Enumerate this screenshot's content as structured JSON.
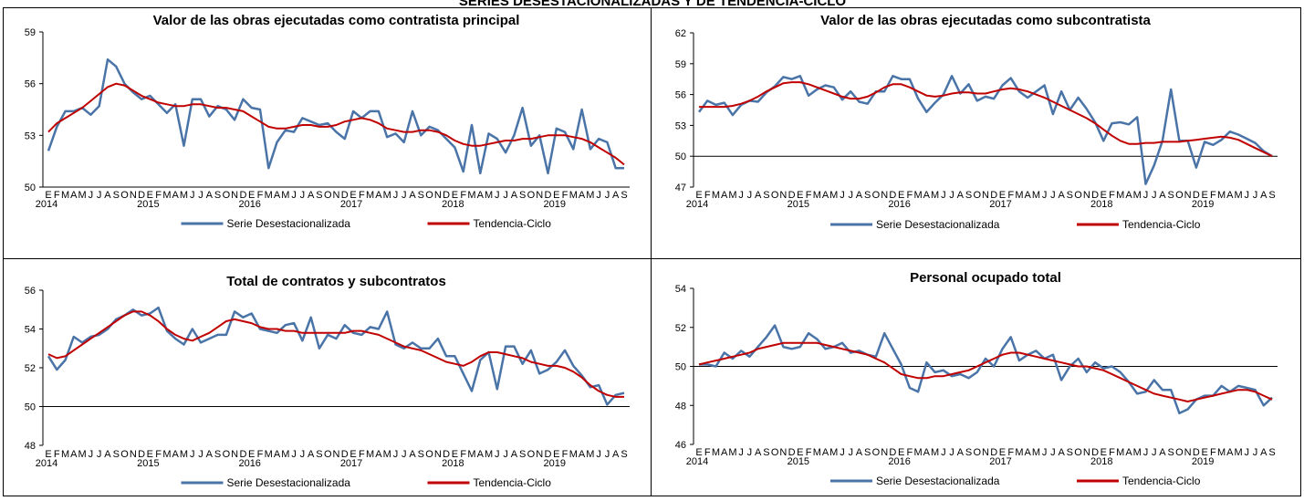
{
  "page_title": "SERIES DESESTACIONALIZADAS Y DE TENDENCIA-CICLO",
  "chart_data": [
    {
      "type": "line",
      "title": "Valor de las obras ejecutadas como contratista principal",
      "ylim": [
        50,
        59
      ],
      "yticks": [
        50,
        53,
        56,
        59
      ],
      "x_axis_at": 50,
      "categories": [
        "E",
        "F",
        "M",
        "A",
        "M",
        "J",
        "J",
        "A",
        "S",
        "O",
        "N",
        "D",
        "E",
        "F",
        "M",
        "A",
        "M",
        "J",
        "J",
        "A",
        "S",
        "O",
        "N",
        "D",
        "E",
        "F",
        "M",
        "A",
        "M",
        "J",
        "J",
        "A",
        "S",
        "O",
        "N",
        "D",
        "E",
        "F",
        "M",
        "A",
        "M",
        "J",
        "J",
        "A",
        "S",
        "O",
        "N",
        "D",
        "E",
        "F",
        "M",
        "A",
        "M",
        "J",
        "J",
        "A",
        "S",
        "O",
        "N",
        "D",
        "E",
        "F",
        "M",
        "A",
        "M",
        "J",
        "J",
        "A",
        "S"
      ],
      "years": [
        "2014",
        null,
        null,
        null,
        null,
        null,
        null,
        null,
        null,
        null,
        null,
        null,
        "2015",
        null,
        null,
        null,
        null,
        null,
        null,
        null,
        null,
        null,
        null,
        null,
        "2016",
        null,
        null,
        null,
        null,
        null,
        null,
        null,
        null,
        null,
        null,
        null,
        "2017",
        null,
        null,
        null,
        null,
        null,
        null,
        null,
        null,
        null,
        null,
        null,
        "2018",
        null,
        null,
        null,
        null,
        null,
        null,
        null,
        null,
        null,
        null,
        null,
        "2019",
        null,
        null,
        null,
        null,
        null,
        null,
        null,
        null
      ],
      "series": [
        {
          "name": "Serie Desestacionalizada",
          "color": "#4a74a8",
          "values": [
            52.1,
            53.5,
            54.4,
            54.4,
            54.6,
            54.2,
            54.7,
            57.4,
            57.0,
            56.0,
            55.5,
            55.1,
            55.3,
            54.8,
            54.3,
            54.8,
            52.4,
            55.1,
            55.1,
            54.1,
            54.7,
            54.5,
            53.9,
            55.1,
            54.6,
            54.5,
            51.1,
            52.6,
            53.3,
            53.2,
            54.0,
            53.8,
            53.6,
            53.7,
            53.2,
            52.8,
            54.4,
            54.0,
            54.4,
            54.4,
            52.9,
            53.1,
            52.6,
            54.4,
            53.0,
            53.5,
            53.3,
            52.8,
            52.3,
            50.9,
            53.6,
            50.8,
            53.1,
            52.8,
            52.0,
            53.0,
            54.6,
            52.4,
            53.0,
            50.8,
            53.4,
            53.2,
            52.2,
            54.5,
            52.2,
            52.8,
            52.6,
            51.1,
            51.1
          ]
        },
        {
          "name": "Tendencia-Ciclo",
          "color": "#c00000",
          "values": [
            53.2,
            53.7,
            54.0,
            54.3,
            54.6,
            55.0,
            55.4,
            55.8,
            56.0,
            55.9,
            55.6,
            55.3,
            55.1,
            54.9,
            54.8,
            54.7,
            54.7,
            54.8,
            54.8,
            54.7,
            54.6,
            54.6,
            54.5,
            54.4,
            54.1,
            53.8,
            53.5,
            53.4,
            53.4,
            53.5,
            53.6,
            53.6,
            53.5,
            53.5,
            53.6,
            53.8,
            53.9,
            54.0,
            53.9,
            53.7,
            53.4,
            53.3,
            53.2,
            53.2,
            53.3,
            53.3,
            53.2,
            53.0,
            52.7,
            52.5,
            52.4,
            52.4,
            52.5,
            52.6,
            52.7,
            52.7,
            52.8,
            52.8,
            52.9,
            53.0,
            53.0,
            53.0,
            52.9,
            52.8,
            52.6,
            52.3,
            52.0,
            51.7,
            51.3
          ]
        }
      ]
    },
    {
      "type": "line",
      "title": "Valor de las obras ejecutadas como subcontratista",
      "ylim": [
        47,
        62
      ],
      "yticks": [
        47,
        50,
        53,
        56,
        59,
        62
      ],
      "x_axis_at": 50,
      "categories": [
        "E",
        "F",
        "M",
        "A",
        "M",
        "J",
        "J",
        "A",
        "S",
        "O",
        "N",
        "D",
        "E",
        "F",
        "M",
        "A",
        "M",
        "J",
        "J",
        "A",
        "S",
        "O",
        "N",
        "D",
        "E",
        "F",
        "M",
        "A",
        "M",
        "J",
        "J",
        "A",
        "S",
        "O",
        "N",
        "D",
        "E",
        "F",
        "M",
        "A",
        "M",
        "J",
        "J",
        "A",
        "S",
        "O",
        "N",
        "D",
        "E",
        "F",
        "M",
        "A",
        "M",
        "J",
        "J",
        "A",
        "S",
        "O",
        "N",
        "D",
        "E",
        "F",
        "M",
        "A",
        "M",
        "J",
        "J",
        "A",
        "S"
      ],
      "years": [
        "2014",
        null,
        null,
        null,
        null,
        null,
        null,
        null,
        null,
        null,
        null,
        null,
        "2015",
        null,
        null,
        null,
        null,
        null,
        null,
        null,
        null,
        null,
        null,
        null,
        "2016",
        null,
        null,
        null,
        null,
        null,
        null,
        null,
        null,
        null,
        null,
        null,
        "2017",
        null,
        null,
        null,
        null,
        null,
        null,
        null,
        null,
        null,
        null,
        null,
        "2018",
        null,
        null,
        null,
        null,
        null,
        null,
        null,
        null,
        null,
        null,
        null,
        "2019",
        null,
        null,
        null,
        null,
        null,
        null,
        null,
        null
      ],
      "series": [
        {
          "name": "Serie Desestacionalizada",
          "color": "#4a74a8",
          "values": [
            54.3,
            55.4,
            55.0,
            55.2,
            54.0,
            55.0,
            55.4,
            55.3,
            56.2,
            56.8,
            57.7,
            57.5,
            57.8,
            55.9,
            56.5,
            56.9,
            56.7,
            55.5,
            56.3,
            55.3,
            55.1,
            56.3,
            56.3,
            57.8,
            57.5,
            57.5,
            55.6,
            54.3,
            55.2,
            56.0,
            57.8,
            56.1,
            57.0,
            55.4,
            55.8,
            55.6,
            56.9,
            57.6,
            56.3,
            55.7,
            56.3,
            56.9,
            54.1,
            56.3,
            54.5,
            55.7,
            54.6,
            53.3,
            51.5,
            53.2,
            53.3,
            53.1,
            53.8,
            47.3,
            49.1,
            51.5,
            56.5,
            51.5,
            51.5,
            48.9,
            51.4,
            51.1,
            51.6,
            52.4,
            52.1,
            51.7,
            51.3,
            50.5,
            50.0
          ]
        },
        {
          "name": "Tendencia-Ciclo",
          "color": "#c00000",
          "values": [
            54.8,
            54.8,
            54.8,
            54.8,
            54.9,
            55.1,
            55.4,
            55.8,
            56.3,
            56.7,
            57.1,
            57.2,
            57.2,
            57.0,
            56.7,
            56.4,
            56.1,
            55.8,
            55.6,
            55.6,
            55.8,
            56.2,
            56.7,
            57.0,
            57.0,
            56.7,
            56.3,
            55.9,
            55.8,
            55.9,
            56.1,
            56.2,
            56.2,
            56.1,
            56.1,
            56.3,
            56.5,
            56.6,
            56.5,
            56.3,
            56.0,
            55.7,
            55.3,
            54.9,
            54.5,
            54.1,
            53.7,
            53.2,
            52.6,
            52.0,
            51.5,
            51.2,
            51.2,
            51.3,
            51.3,
            51.4,
            51.4,
            51.4,
            51.5,
            51.6,
            51.7,
            51.8,
            51.9,
            51.8,
            51.6,
            51.2,
            50.8,
            50.4,
            50.0
          ]
        }
      ]
    },
    {
      "type": "line",
      "title": "Total de contratos y subcontratos",
      "ylim": [
        48,
        56
      ],
      "yticks": [
        48,
        50,
        52,
        54,
        56
      ],
      "x_axis_at": 50,
      "categories": [
        "E",
        "F",
        "M",
        "A",
        "M",
        "J",
        "J",
        "A",
        "S",
        "O",
        "N",
        "D",
        "E",
        "F",
        "M",
        "A",
        "M",
        "J",
        "J",
        "A",
        "S",
        "O",
        "N",
        "D",
        "E",
        "F",
        "M",
        "A",
        "M",
        "J",
        "J",
        "A",
        "S",
        "O",
        "N",
        "D",
        "E",
        "F",
        "M",
        "A",
        "M",
        "J",
        "J",
        "A",
        "S",
        "O",
        "N",
        "D",
        "E",
        "F",
        "M",
        "A",
        "M",
        "J",
        "J",
        "A",
        "S",
        "O",
        "N",
        "D",
        "E",
        "F",
        "M",
        "A",
        "M",
        "J",
        "J",
        "A",
        "S"
      ],
      "years": [
        "2014",
        null,
        null,
        null,
        null,
        null,
        null,
        null,
        null,
        null,
        null,
        null,
        "2015",
        null,
        null,
        null,
        null,
        null,
        null,
        null,
        null,
        null,
        null,
        null,
        "2016",
        null,
        null,
        null,
        null,
        null,
        null,
        null,
        null,
        null,
        null,
        null,
        "2017",
        null,
        null,
        null,
        null,
        null,
        null,
        null,
        null,
        null,
        null,
        null,
        "2018",
        null,
        null,
        null,
        null,
        null,
        null,
        null,
        null,
        null,
        null,
        null,
        "2019",
        null,
        null,
        null,
        null,
        null,
        null,
        null,
        null
      ],
      "series": [
        {
          "name": "Serie Desestacionalizada",
          "color": "#4a74a8",
          "values": [
            52.6,
            51.9,
            52.4,
            53.6,
            53.3,
            53.6,
            53.7,
            54.0,
            54.5,
            54.7,
            55.0,
            54.7,
            54.8,
            55.1,
            53.9,
            53.5,
            53.2,
            54.0,
            53.3,
            53.5,
            53.7,
            53.7,
            54.9,
            54.6,
            54.8,
            54.0,
            53.9,
            53.8,
            54.2,
            54.3,
            53.4,
            54.6,
            53.0,
            53.7,
            53.5,
            54.2,
            53.8,
            53.7,
            54.1,
            54.0,
            54.9,
            53.2,
            53.0,
            53.3,
            53.0,
            53.0,
            53.5,
            52.6,
            52.6,
            51.7,
            50.8,
            52.4,
            52.8,
            50.9,
            53.1,
            53.1,
            52.2,
            52.9,
            51.7,
            51.9,
            52.3,
            52.9,
            52.1,
            51.6,
            51.0,
            51.1,
            50.1,
            50.6,
            50.7
          ]
        },
        {
          "name": "Tendencia-Ciclo",
          "color": "#c00000",
          "values": [
            52.7,
            52.5,
            52.6,
            52.9,
            53.2,
            53.5,
            53.8,
            54.1,
            54.4,
            54.7,
            54.9,
            54.9,
            54.7,
            54.4,
            54.0,
            53.7,
            53.5,
            53.4,
            53.6,
            53.8,
            54.1,
            54.4,
            54.5,
            54.4,
            54.3,
            54.1,
            54.0,
            54.0,
            53.9,
            53.9,
            53.8,
            53.8,
            53.8,
            53.8,
            53.8,
            53.8,
            53.9,
            53.9,
            53.8,
            53.7,
            53.5,
            53.3,
            53.1,
            53.0,
            52.9,
            52.7,
            52.5,
            52.3,
            52.2,
            52.1,
            52.3,
            52.6,
            52.8,
            52.8,
            52.7,
            52.6,
            52.5,
            52.3,
            52.2,
            52.1,
            52.1,
            52.0,
            51.8,
            51.5,
            51.1,
            50.8,
            50.6,
            50.5,
            50.5
          ]
        }
      ]
    },
    {
      "type": "line",
      "title": "Personal ocupado total",
      "ylim": [
        46,
        54
      ],
      "yticks": [
        46,
        48,
        50,
        52,
        54
      ],
      "x_axis_at": 50,
      "categories": [
        "E",
        "F",
        "M",
        "A",
        "M",
        "J",
        "J",
        "A",
        "S",
        "O",
        "N",
        "D",
        "E",
        "F",
        "M",
        "A",
        "M",
        "J",
        "J",
        "A",
        "S",
        "O",
        "N",
        "D",
        "E",
        "F",
        "M",
        "A",
        "M",
        "J",
        "J",
        "A",
        "S",
        "O",
        "N",
        "D",
        "E",
        "F",
        "M",
        "A",
        "M",
        "J",
        "J",
        "A",
        "S",
        "O",
        "N",
        "D",
        "E",
        "F",
        "M",
        "A",
        "M",
        "J",
        "J",
        "A",
        "S",
        "O",
        "N",
        "D",
        "E",
        "F",
        "M",
        "A",
        "M",
        "J",
        "J",
        "A",
        "S"
      ],
      "years": [
        "2014",
        null,
        null,
        null,
        null,
        null,
        null,
        null,
        null,
        null,
        null,
        null,
        "2015",
        null,
        null,
        null,
        null,
        null,
        null,
        null,
        null,
        null,
        null,
        null,
        "2016",
        null,
        null,
        null,
        null,
        null,
        null,
        null,
        null,
        null,
        null,
        null,
        "2017",
        null,
        null,
        null,
        null,
        null,
        null,
        null,
        null,
        null,
        null,
        null,
        "2018",
        null,
        null,
        null,
        null,
        null,
        null,
        null,
        null,
        null,
        null,
        null,
        "2019",
        null,
        null,
        null,
        null,
        null,
        null,
        null,
        null
      ],
      "series": [
        {
          "name": "Serie Desestacionalizada",
          "color": "#4a74a8",
          "values": [
            50.1,
            50.1,
            50.0,
            50.7,
            50.4,
            50.8,
            50.5,
            51.0,
            51.5,
            52.1,
            51.0,
            50.9,
            51.0,
            51.7,
            51.4,
            50.9,
            51.0,
            51.2,
            50.7,
            50.8,
            50.6,
            50.5,
            51.7,
            50.9,
            50.1,
            48.9,
            48.7,
            50.2,
            49.7,
            49.8,
            49.5,
            49.6,
            49.4,
            49.7,
            50.4,
            50.0,
            50.9,
            51.5,
            50.3,
            50.6,
            50.8,
            50.4,
            50.6,
            49.3,
            50.0,
            50.4,
            49.7,
            50.2,
            49.9,
            50.0,
            49.7,
            49.2,
            48.6,
            48.7,
            49.3,
            48.8,
            48.8,
            47.6,
            47.8,
            48.3,
            48.5,
            48.5,
            49.0,
            48.7,
            49.0,
            48.9,
            48.8,
            48.0,
            48.4
          ]
        },
        {
          "name": "Tendencia-Ciclo",
          "color": "#c00000",
          "values": [
            50.1,
            50.2,
            50.3,
            50.4,
            50.5,
            50.6,
            50.7,
            50.9,
            51.0,
            51.1,
            51.2,
            51.2,
            51.2,
            51.2,
            51.2,
            51.1,
            51.0,
            50.9,
            50.8,
            50.7,
            50.6,
            50.4,
            50.2,
            49.9,
            49.6,
            49.5,
            49.4,
            49.4,
            49.5,
            49.5,
            49.6,
            49.7,
            49.8,
            50.0,
            50.2,
            50.4,
            50.6,
            50.7,
            50.7,
            50.6,
            50.5,
            50.4,
            50.3,
            50.2,
            50.1,
            50.0,
            50.0,
            49.9,
            49.8,
            49.6,
            49.4,
            49.2,
            49.0,
            48.8,
            48.6,
            48.5,
            48.4,
            48.3,
            48.2,
            48.3,
            48.4,
            48.5,
            48.6,
            48.7,
            48.8,
            48.8,
            48.7,
            48.5,
            48.3
          ]
        }
      ]
    }
  ]
}
